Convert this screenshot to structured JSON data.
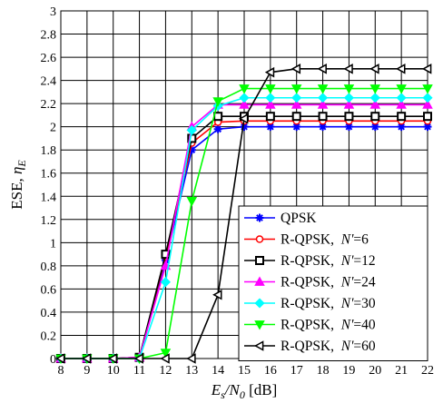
{
  "chart_data": {
    "type": "line",
    "xlabel": "E_s/N_0 [dB]",
    "xlabel_parts": {
      "main": "E",
      "sub1": "s",
      "slash": "/N",
      "sub2": "0",
      "unit": " [dB]"
    },
    "ylabel": "ESE, η_E",
    "ylabel_parts": {
      "main": "ESE, ",
      "greek": "η",
      "sub": "E"
    },
    "xlim": [
      8,
      22
    ],
    "ylim": [
      0,
      3
    ],
    "xticks": [
      8,
      9,
      10,
      11,
      12,
      13,
      14,
      15,
      16,
      17,
      18,
      19,
      20,
      21,
      22
    ],
    "yticks": [
      0,
      0.2,
      0.4,
      0.6,
      0.8,
      1,
      1.2,
      1.4,
      1.6,
      1.8,
      2,
      2.2,
      2.4,
      2.6,
      2.8,
      3
    ],
    "grid": true,
    "legend_position": "lower-right",
    "x": [
      8,
      9,
      10,
      11,
      12,
      13,
      14,
      15,
      16,
      17,
      18,
      19,
      20,
      21,
      22
    ],
    "series": [
      {
        "name": "QPSK",
        "label_prefix": "QPSK",
        "label_var": "",
        "label_val": "",
        "color": "#0000ff",
        "marker": "asterisk",
        "values": [
          0,
          0,
          0,
          0.01,
          0.85,
          1.8,
          1.98,
          2.0,
          2.0,
          2.0,
          2.0,
          2.0,
          2.0,
          2.0,
          2.0
        ]
      },
      {
        "name": "R-QPSK, N'=6",
        "label_prefix": "R-QPSK,  ",
        "label_var": "N'",
        "label_val": "=6",
        "color": "#ff0000",
        "marker": "circle",
        "values": [
          0,
          0,
          0,
          0.01,
          0.88,
          1.86,
          2.04,
          2.05,
          2.05,
          2.05,
          2.05,
          2.05,
          2.05,
          2.05,
          2.05
        ]
      },
      {
        "name": "R-QPSK, N'=12",
        "label_prefix": "R-QPSK,  ",
        "label_var": "N'",
        "label_val": "=12",
        "color": "#000000",
        "marker": "square",
        "values": [
          0,
          0,
          0,
          0.01,
          0.9,
          1.9,
          2.09,
          2.09,
          2.09,
          2.09,
          2.09,
          2.09,
          2.09,
          2.09,
          2.09
        ]
      },
      {
        "name": "R-QPSK, N'=24",
        "label_prefix": "R-QPSK,  ",
        "label_var": "N'",
        "label_val": "=24",
        "color": "#ff00ff",
        "marker": "triangle-up",
        "values": [
          0,
          0,
          0,
          0.01,
          0.8,
          2.0,
          2.19,
          2.19,
          2.19,
          2.19,
          2.19,
          2.19,
          2.19,
          2.19,
          2.19
        ]
      },
      {
        "name": "R-QPSK, N'=30",
        "label_prefix": "R-QPSK,  ",
        "label_var": "N'",
        "label_val": "=30",
        "color": "#00ffff",
        "marker": "diamond",
        "values": [
          0,
          0,
          0,
          0,
          0.66,
          1.97,
          2.18,
          2.25,
          2.25,
          2.25,
          2.25,
          2.25,
          2.25,
          2.25,
          2.25
        ]
      },
      {
        "name": "R-QPSK, N'=40",
        "label_prefix": "R-QPSK,  ",
        "label_var": "N'",
        "label_val": "=40",
        "color": "#00ff00",
        "marker": "triangle-down",
        "values": [
          0,
          0,
          0,
          0,
          0.05,
          1.36,
          2.22,
          2.33,
          2.33,
          2.33,
          2.33,
          2.33,
          2.33,
          2.33,
          2.33
        ]
      },
      {
        "name": "R-QPSK, N'=60",
        "label_prefix": "R-QPSK,  ",
        "label_var": "N'",
        "label_val": "=60",
        "color": "#000000",
        "marker": "triangle-left",
        "values": [
          0,
          0,
          0,
          0,
          0,
          0,
          0.55,
          2.07,
          2.47,
          2.5,
          2.5,
          2.5,
          2.5,
          2.5,
          2.5
        ]
      }
    ]
  }
}
